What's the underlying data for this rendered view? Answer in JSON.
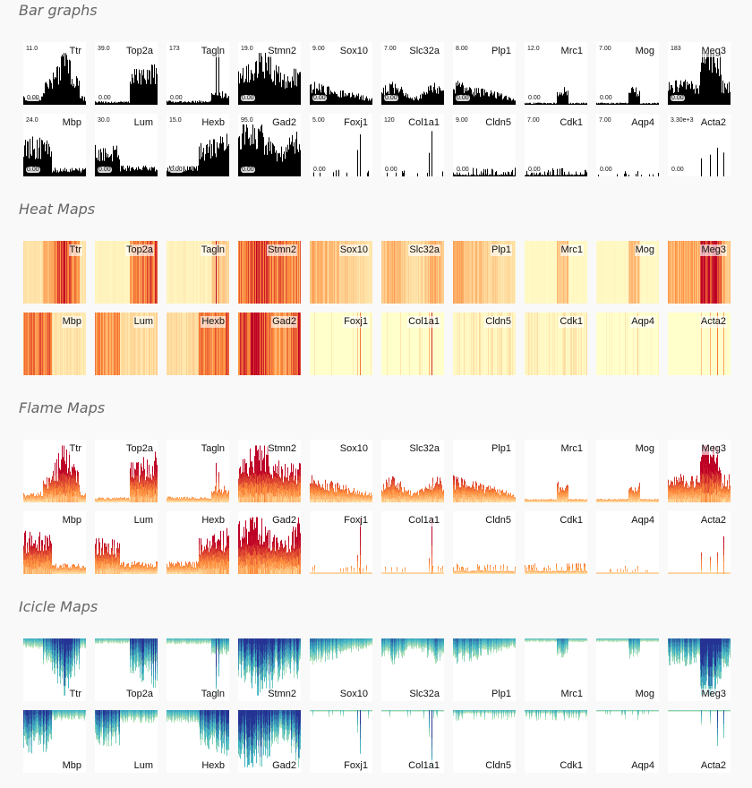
{
  "sections": [
    {
      "key": "bar",
      "title": "Bar graphs"
    },
    {
      "key": "heat",
      "title": "Heat Maps"
    },
    {
      "key": "flame",
      "title": "Flame Maps"
    },
    {
      "key": "icicle",
      "title": "Icicle Maps"
    }
  ],
  "genes": [
    {
      "name": "Ttr",
      "max": "11.0",
      "min": "0.00",
      "profile": "mid"
    },
    {
      "name": "Top2a",
      "max": "39.0",
      "min": "0.00",
      "profile": "right"
    },
    {
      "name": "Tagln",
      "max": "173",
      "min": "0.00",
      "profile": "spikeRight"
    },
    {
      "name": "Stmn2",
      "max": "19.0",
      "min": "0.00",
      "profile": "heavy"
    },
    {
      "name": "Sox10",
      "max": "9.00",
      "min": "0.00",
      "profile": "leftMed"
    },
    {
      "name": "Slc32a",
      "max": "7.00",
      "min": "0.00",
      "profile": "lowWide"
    },
    {
      "name": "Plp1",
      "max": "8.00",
      "min": "0.00",
      "profile": "leftMed"
    },
    {
      "name": "Mrc1",
      "max": "12.0",
      "min": "0.00",
      "profile": "sparseMid"
    },
    {
      "name": "Mog",
      "max": "7.00",
      "min": "0.00",
      "profile": "sparseMid"
    },
    {
      "name": "Meg3",
      "max": "183",
      "min": "0.00",
      "profile": "meg3"
    },
    {
      "name": "Mbp",
      "max": "24.0",
      "min": "0.00",
      "profile": "leftBig"
    },
    {
      "name": "Lum",
      "max": "30.0",
      "min": "0.00",
      "profile": "leftHigh"
    },
    {
      "name": "Hexb",
      "max": "15.0",
      "min": "0.00",
      "profile": "rightBig"
    },
    {
      "name": "Gad2",
      "max": "95.0",
      "min": "0.00",
      "profile": "full"
    },
    {
      "name": "Foxj1",
      "max": "5.00",
      "min": "0.00",
      "profile": "spikeSparse"
    },
    {
      "name": "Col1a1",
      "max": "120",
      "min": "0.00",
      "profile": "spikeSparse"
    },
    {
      "name": "Cldn5",
      "max": "9.00",
      "min": "0.00",
      "profile": "lowFlat"
    },
    {
      "name": "Cdk1",
      "max": "7.00",
      "min": "0.00",
      "profile": "lowFlat"
    },
    {
      "name": "Aqp4",
      "max": "7.00",
      "min": "0.00",
      "profile": "veryLow"
    },
    {
      "name": "Acta2",
      "max": "3.30e+3",
      "min": "0.00",
      "profile": "fewSpikes"
    }
  ],
  "colors": {
    "background": "#f9f9f9",
    "bar": "#000000",
    "heat_low": "#ffffcc",
    "heat_mid": "#fd8d3c",
    "heat_high": "#bd0026",
    "icicle_low": "#edf8b1",
    "icicle_mid": "#41b6c4",
    "icicle_high": "#253494"
  }
}
